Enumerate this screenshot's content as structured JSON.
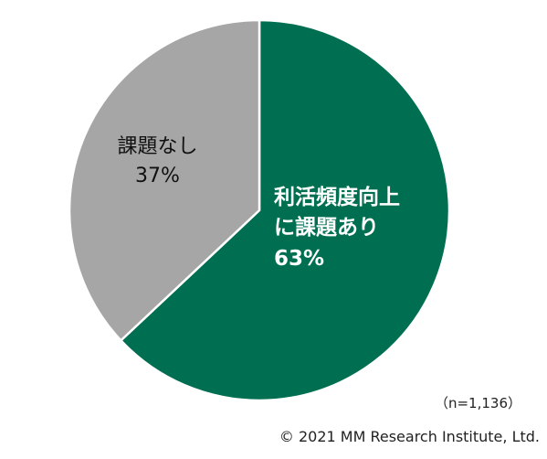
{
  "chart_data": {
    "type": "pie",
    "categories": [
      "利活頻度向上に課題あり",
      "課題なし"
    ],
    "values": [
      63,
      37
    ],
    "value_labels": [
      "63%",
      "37%"
    ],
    "colors": [
      "#006e51",
      "#a6a6a6"
    ],
    "note": "（n=1,136）",
    "copyright": "© 2021 MM Research Institute, Ltd."
  }
}
